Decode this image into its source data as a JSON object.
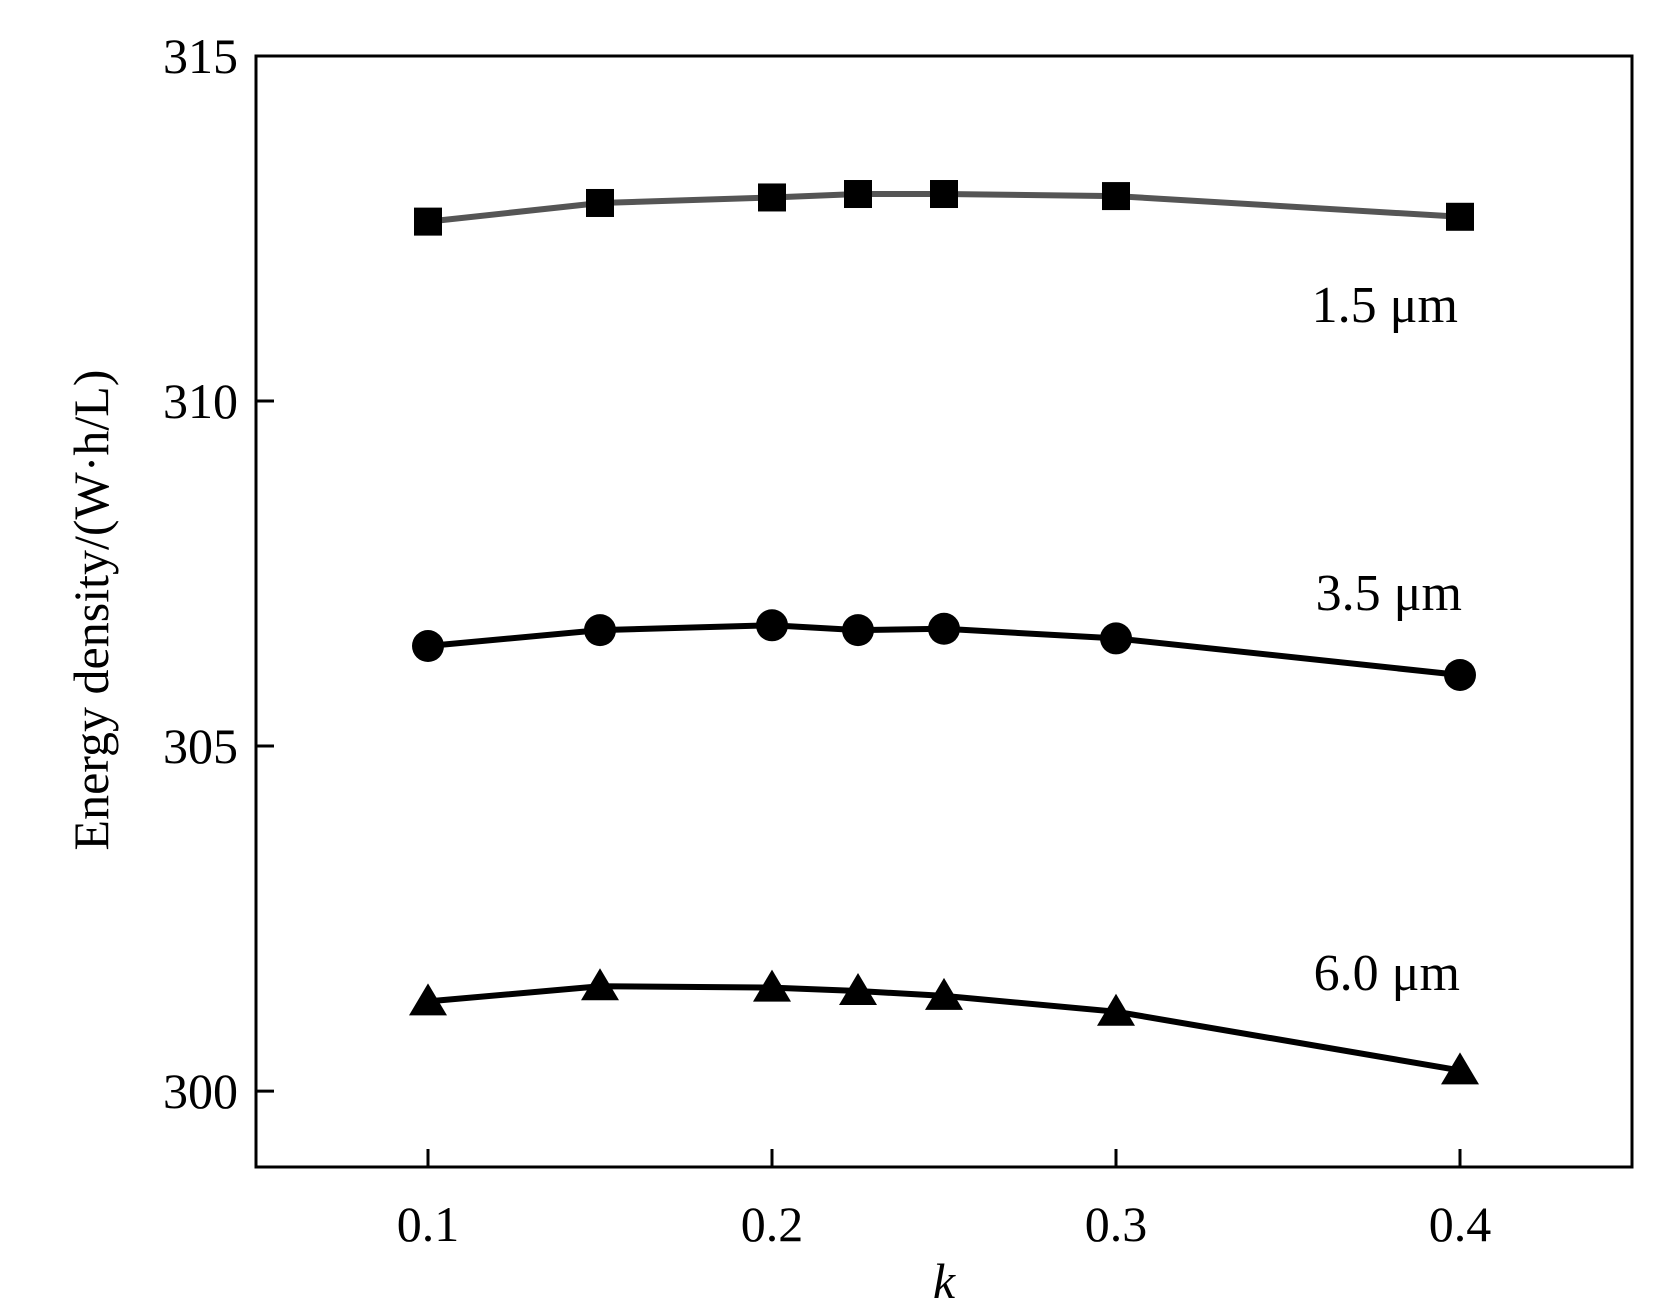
{
  "chart_data": {
    "type": "line",
    "title": "",
    "xlabel": "k",
    "ylabel": "Energy density/(W·h/L)",
    "xlim": [
      0.05,
      0.45
    ],
    "ylim": [
      298.9,
      315
    ],
    "xticks": [
      0.1,
      0.2,
      0.3,
      0.4
    ],
    "xtick_labels": [
      "0.1",
      "0.2",
      "0.3",
      "0.4"
    ],
    "yticks": [
      300,
      305,
      310,
      315
    ],
    "ytick_labels": [
      "300",
      "305",
      "310",
      "315"
    ],
    "grid": false,
    "x": [
      0.1,
      0.15,
      0.2,
      0.225,
      0.25,
      0.3,
      0.4
    ],
    "series": [
      {
        "name": "1.5 μm",
        "marker": "square",
        "color": "#555555",
        "values": [
          312.6,
          312.87,
          312.95,
          313.0,
          313.0,
          312.97,
          312.67
        ]
      },
      {
        "name": "3.5 μm",
        "marker": "circle",
        "color": "#000000",
        "values": [
          306.45,
          306.68,
          306.75,
          306.68,
          306.7,
          306.56,
          306.03
        ]
      },
      {
        "name": "6.0 μm",
        "marker": "triangle",
        "color": "#000000",
        "values": [
          301.3,
          301.52,
          301.5,
          301.45,
          301.38,
          301.15,
          300.3
        ]
      }
    ]
  }
}
